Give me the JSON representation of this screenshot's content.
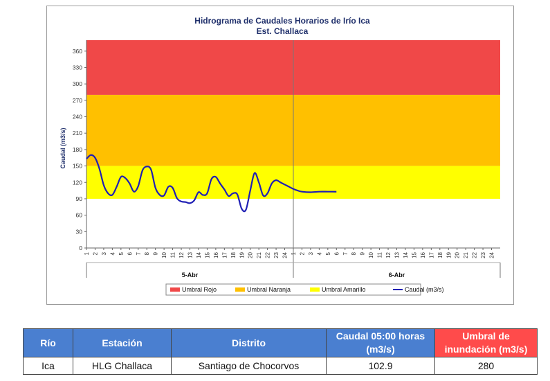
{
  "chart_data": {
    "type": "line",
    "title": "Hidrograma de Caudales Horarios de Irío Ica",
    "subtitle": "Est. Challaca",
    "ylabel": "Caudal  (m3/s)",
    "ylim": [
      0,
      380
    ],
    "yticks": [
      0,
      30,
      60,
      90,
      120,
      150,
      180,
      210,
      240,
      270,
      300,
      330,
      360
    ],
    "x_hours": [
      "1",
      "2",
      "3",
      "4",
      "5",
      "6",
      "7",
      "8",
      "9",
      "10",
      "11",
      "12",
      "13",
      "14",
      "15",
      "16",
      "17",
      "18",
      "19",
      "20",
      "21",
      "22",
      "23",
      "24",
      "1",
      "2",
      "3",
      "4",
      "5",
      "6",
      "7",
      "8",
      "9",
      "10",
      "11",
      "12",
      "13",
      "14",
      "15",
      "16",
      "17",
      "18",
      "19",
      "20",
      "21",
      "22",
      "23",
      "24"
    ],
    "days": [
      "5-Abr",
      "6-Abr"
    ],
    "thresholds": [
      {
        "name": "Umbral Rojo",
        "from": 280,
        "to": 380,
        "color": "#f04848"
      },
      {
        "name": "Umbral Naranja",
        "from": 150,
        "to": 280,
        "color": "#ffc000"
      },
      {
        "name": "Umbral Amarillo",
        "from": 90,
        "to": 150,
        "color": "#ffff00"
      }
    ],
    "series": [
      {
        "name": "Caudal (m3/s)",
        "color": "#1f1fb4",
        "x": [
          0,
          0.5,
          1,
          1.5,
          2,
          2.5,
          3,
          3.5,
          4,
          4.5,
          5,
          5.5,
          6,
          6.5,
          7,
          7.5,
          8,
          8.5,
          9,
          9.5,
          10,
          10.5,
          11,
          11.5,
          12,
          12.5,
          13,
          13.5,
          14,
          14.5,
          15,
          15.5,
          16,
          16.5,
          17,
          17.5,
          18,
          18.5,
          19,
          19.5,
          20,
          20.5,
          21,
          21.5,
          22,
          22.5,
          23,
          23.5,
          24,
          24.5,
          25,
          26,
          27,
          28,
          29
        ],
        "y": [
          163,
          170,
          165,
          145,
          115,
          100,
          97,
          112,
          130,
          128,
          118,
          103,
          113,
          142,
          149,
          143,
          110,
          97,
          96,
          112,
          110,
          91,
          85,
          84,
          82,
          87,
          102,
          97,
          100,
          126,
          130,
          118,
          107,
          95,
          100,
          98,
          72,
          70,
          105,
          137,
          120,
          96,
          100,
          118,
          124,
          120,
          116,
          112,
          108,
          105,
          103,
          102,
          103,
          103,
          102.9
        ]
      }
    ],
    "legend": {
      "position": "bottom",
      "items": [
        "Umbral Rojo",
        "Umbral Naranja",
        "Umbral Amarillo",
        "Caudal (m3/s)"
      ]
    },
    "grid": false
  },
  "table": {
    "headers": [
      "Río",
      "Estación",
      "Distrito",
      "Caudal 05:00 horas (m3/s)",
      "Umbral de inundación (m3/s)"
    ],
    "row": [
      "Ica",
      "HLG Challaca",
      "Santiago de Chocorvos",
      "102.9",
      "280"
    ]
  }
}
